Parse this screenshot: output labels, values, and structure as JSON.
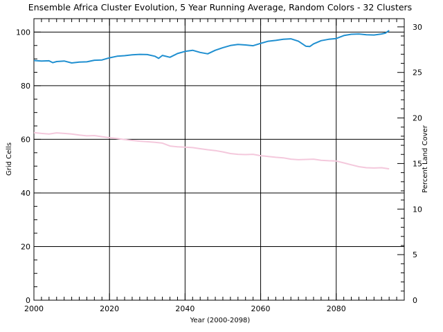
{
  "chart_data": {
    "type": "line",
    "title": "Ensemble Africa Cluster Evolution, 5 Year Running Average, Random Colors - 32 Clusters",
    "xlabel": "Year (2000-2098)",
    "ylabel": "Grid Cells",
    "y2label": "Percent Land Cover",
    "xlim": [
      2000,
      2098
    ],
    "ylim": [
      0,
      105
    ],
    "y2lim": [
      0,
      30.9
    ],
    "grid": true,
    "xticks": [
      "2000",
      "2020",
      "2040",
      "2060",
      "2080"
    ],
    "yticks": [
      "0",
      "20",
      "40",
      "60",
      "80",
      "100"
    ],
    "y2ticks": [
      "0",
      "5",
      "10",
      "15",
      "20",
      "25",
      "30"
    ],
    "series": [
      {
        "color": "#1f8fd0",
        "points": [
          [
            2000,
            89.4
          ],
          [
            2002,
            89.2
          ],
          [
            2004,
            89.3
          ],
          [
            2005,
            88.6
          ],
          [
            2006,
            89.0
          ],
          [
            2008,
            89.2
          ],
          [
            2010,
            88.5
          ],
          [
            2012,
            88.8
          ],
          [
            2014,
            88.9
          ],
          [
            2016,
            89.5
          ],
          [
            2018,
            89.6
          ],
          [
            2020,
            90.4
          ],
          [
            2022,
            91.0
          ],
          [
            2024,
            91.2
          ],
          [
            2026,
            91.5
          ],
          [
            2028,
            91.7
          ],
          [
            2030,
            91.6
          ],
          [
            2032,
            91.0
          ],
          [
            2033,
            90.2
          ],
          [
            2034,
            91.3
          ],
          [
            2036,
            90.6
          ],
          [
            2038,
            92.0
          ],
          [
            2040,
            92.8
          ],
          [
            2042,
            93.2
          ],
          [
            2044,
            92.4
          ],
          [
            2046,
            91.9
          ],
          [
            2048,
            93.2
          ],
          [
            2050,
            94.2
          ],
          [
            2052,
            95.0
          ],
          [
            2054,
            95.4
          ],
          [
            2056,
            95.2
          ],
          [
            2058,
            94.9
          ],
          [
            2060,
            95.8
          ],
          [
            2062,
            96.6
          ],
          [
            2064,
            96.9
          ],
          [
            2066,
            97.3
          ],
          [
            2068,
            97.5
          ],
          [
            2070,
            96.6
          ],
          [
            2072,
            94.7
          ],
          [
            2073,
            94.6
          ],
          [
            2074,
            95.6
          ],
          [
            2076,
            96.8
          ],
          [
            2078,
            97.3
          ],
          [
            2080,
            97.6
          ],
          [
            2082,
            98.7
          ],
          [
            2084,
            99.2
          ],
          [
            2086,
            99.3
          ],
          [
            2088,
            99.0
          ],
          [
            2090,
            98.9
          ],
          [
            2092,
            99.3
          ],
          [
            2093,
            99.6
          ],
          [
            2094,
            100.6
          ]
        ]
      },
      {
        "color": "#f4c8dc",
        "points": [
          [
            2000,
            62.5
          ],
          [
            2002,
            62.2
          ],
          [
            2004,
            62.0
          ],
          [
            2006,
            62.4
          ],
          [
            2008,
            62.2
          ],
          [
            2010,
            62.0
          ],
          [
            2012,
            61.6
          ],
          [
            2014,
            61.3
          ],
          [
            2016,
            61.4
          ],
          [
            2018,
            61.0
          ],
          [
            2020,
            60.6
          ],
          [
            2022,
            60.3
          ],
          [
            2024,
            59.9
          ],
          [
            2026,
            59.6
          ],
          [
            2028,
            59.3
          ],
          [
            2030,
            59.1
          ],
          [
            2032,
            58.9
          ],
          [
            2034,
            58.6
          ],
          [
            2036,
            57.5
          ],
          [
            2038,
            57.2
          ],
          [
            2040,
            57.1
          ],
          [
            2042,
            56.9
          ],
          [
            2044,
            56.5
          ],
          [
            2046,
            56.1
          ],
          [
            2048,
            55.8
          ],
          [
            2050,
            55.3
          ],
          [
            2052,
            54.7
          ],
          [
            2054,
            54.4
          ],
          [
            2056,
            54.3
          ],
          [
            2058,
            54.4
          ],
          [
            2060,
            53.9
          ],
          [
            2062,
            53.6
          ],
          [
            2064,
            53.3
          ],
          [
            2066,
            53.1
          ],
          [
            2068,
            52.6
          ],
          [
            2070,
            52.4
          ],
          [
            2072,
            52.5
          ],
          [
            2074,
            52.6
          ],
          [
            2076,
            52.2
          ],
          [
            2078,
            52.0
          ],
          [
            2080,
            51.9
          ],
          [
            2082,
            51.2
          ],
          [
            2084,
            50.5
          ],
          [
            2086,
            49.8
          ],
          [
            2088,
            49.4
          ],
          [
            2090,
            49.3
          ],
          [
            2092,
            49.4
          ],
          [
            2094,
            49.0
          ]
        ]
      }
    ]
  }
}
